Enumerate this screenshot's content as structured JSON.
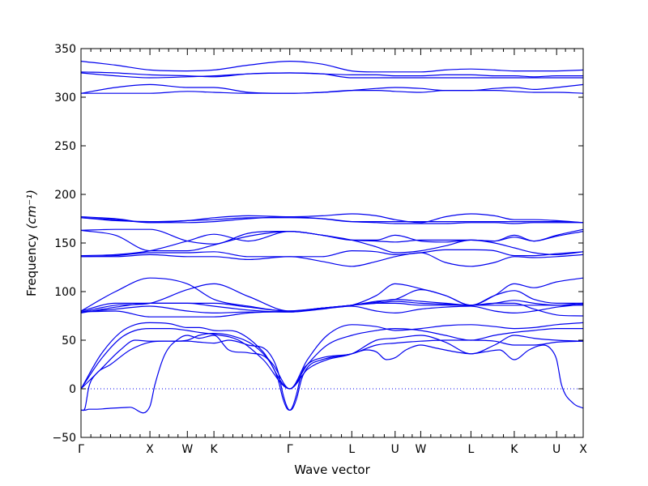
{
  "chart_data": {
    "type": "line",
    "title": "",
    "xlabel": "Wave vector",
    "ylabel": "Frequency",
    "ylabel_unit": "(cm⁻¹)",
    "ylim": [
      -50,
      350
    ],
    "yticks": [
      -50,
      0,
      50,
      100,
      150,
      200,
      250,
      300,
      350
    ],
    "grid": false,
    "legend": "none",
    "line_color": "#0000ee",
    "zero_line_color": "#0000ee",
    "xlim": [
      0,
      5.1
    ],
    "x_path": [
      {
        "label": "Γ",
        "x": 0.0
      },
      {
        "label": "X",
        "x": 0.7
      },
      {
        "label": "W",
        "x": 1.08
      },
      {
        "label": "K",
        "x": 1.35
      },
      {
        "label": "Γ",
        "x": 2.12
      },
      {
        "label": "L",
        "x": 2.75
      },
      {
        "label": "U",
        "x": 3.19
      },
      {
        "label": "W",
        "x": 3.45
      },
      {
        "label": "L",
        "x": 3.96
      },
      {
        "label": "K",
        "x": 4.4
      },
      {
        "label": "U",
        "x": 4.83
      },
      {
        "label": "X",
        "x": 5.1
      }
    ],
    "series": [
      {
        "x": [
          0,
          0.01,
          0.04,
          0.08,
          0.15,
          0.3,
          0.5,
          0.7,
          0.75,
          0.85,
          1.0,
          1.08,
          1.2,
          1.35,
          1.5,
          1.7,
          1.9,
          2.0,
          2.05,
          2.09,
          2.12,
          2.15,
          2.19,
          2.24,
          2.3,
          2.45,
          2.75,
          2.9,
          3.0,
          3.1,
          3.19,
          3.3,
          3.45,
          3.6,
          3.8,
          3.96,
          4.1,
          4.25,
          4.4,
          4.55,
          4.7,
          4.78,
          4.83,
          4.88,
          5.0,
          5.1
        ],
        "y": [
          -22,
          -22,
          -22,
          -21,
          -21,
          -20,
          -19,
          -18,
          4,
          35,
          52,
          55,
          52,
          55,
          40,
          37,
          30,
          10,
          -10,
          -20,
          -22,
          -20,
          -10,
          10,
          22,
          30,
          36,
          40,
          38,
          30,
          32,
          40,
          45,
          42,
          38,
          36,
          38,
          40,
          30,
          40,
          45,
          40,
          30,
          4,
          -15,
          -20
        ]
      },
      {
        "x": [
          0,
          0.04,
          0.08,
          0.15,
          0.3,
          0.5,
          0.7,
          0.9,
          1.08,
          1.2,
          1.35,
          1.5,
          1.7,
          1.9,
          2.0,
          2.05,
          2.09,
          2.12,
          2.15,
          2.19,
          2.24,
          2.3,
          2.45,
          2.75,
          3.0,
          3.19,
          3.45,
          3.7,
          3.96,
          4.2,
          4.4,
          4.6,
          4.83,
          5.1
        ],
        "y": [
          -22,
          -20,
          2,
          15,
          25,
          40,
          48,
          49,
          49,
          48,
          47,
          50,
          45,
          38,
          18,
          -5,
          -18,
          -22,
          -18,
          -5,
          16,
          25,
          32,
          36,
          45,
          47,
          49,
          50,
          50,
          49,
          45,
          45,
          48,
          49
        ]
      },
      {
        "x": [
          0,
          0.2,
          0.4,
          0.55,
          0.7,
          0.9,
          1.08,
          1.2,
          1.35,
          1.55,
          1.75,
          1.95,
          2.12,
          2.3,
          2.5,
          2.75,
          3.0,
          3.19,
          3.45,
          3.7,
          3.96,
          4.2,
          4.4,
          4.6,
          4.83,
          5.1
        ],
        "y": [
          0,
          20,
          40,
          50,
          49,
          49,
          50,
          55,
          57,
          54,
          45,
          25,
          0,
          20,
          30,
          36,
          50,
          52,
          55,
          48,
          36,
          45,
          55,
          52,
          50,
          49
        ]
      },
      {
        "x": [
          0,
          0.2,
          0.4,
          0.55,
          0.7,
          0.9,
          1.08,
          1.2,
          1.35,
          1.6,
          1.85,
          2.12,
          2.3,
          2.5,
          2.75,
          3.0,
          3.19,
          3.45,
          3.7,
          3.96,
          4.2,
          4.4,
          4.6,
          4.83,
          5.1
        ],
        "y": [
          0,
          30,
          52,
          60,
          62,
          62,
          60,
          58,
          56,
          50,
          30,
          0,
          25,
          45,
          55,
          60,
          62,
          60,
          55,
          50,
          55,
          58,
          60,
          62,
          62
        ]
      },
      {
        "x": [
          0,
          0.2,
          0.4,
          0.55,
          0.7,
          0.9,
          1.08,
          1.2,
          1.35,
          1.6,
          1.85,
          2.12,
          2.3,
          2.5,
          2.75,
          3.0,
          3.19,
          3.45,
          3.7,
          3.96,
          4.2,
          4.4,
          4.6,
          4.83,
          5.1
        ],
        "y": [
          0,
          35,
          58,
          66,
          68,
          67,
          63,
          63,
          60,
          58,
          38,
          0,
          30,
          55,
          66,
          64,
          60,
          62,
          65,
          66,
          64,
          62,
          63,
          66,
          68
        ]
      },
      {
        "x": [
          0,
          0.35,
          0.7,
          1.08,
          1.35,
          1.7,
          2.12,
          2.45,
          2.75,
          3.0,
          3.19,
          3.45,
          3.7,
          3.96,
          4.2,
          4.4,
          4.6,
          4.83,
          5.1
        ],
        "y": [
          79,
          80,
          74,
          74,
          74,
          78,
          80,
          83,
          86,
          88,
          90,
          88,
          87,
          86,
          88,
          88,
          82,
          76,
          75
        ]
      },
      {
        "x": [
          0,
          0.35,
          0.7,
          1.08,
          1.35,
          1.7,
          2.12,
          2.45,
          2.75,
          3.0,
          3.19,
          3.45,
          3.7,
          3.96,
          4.2,
          4.4,
          4.6,
          4.83,
          5.1
        ],
        "y": [
          79,
          82,
          85,
          80,
          78,
          79,
          79,
          82,
          85,
          80,
          78,
          82,
          84,
          85,
          80,
          78,
          80,
          84,
          87
        ]
      },
      {
        "x": [
          0,
          0.35,
          0.7,
          1.08,
          1.35,
          1.7,
          2.12,
          2.45,
          2.75,
          3.0,
          3.19,
          3.45,
          3.7,
          3.96,
          4.2,
          4.4,
          4.6,
          4.83,
          5.1
        ],
        "y": [
          78,
          84,
          88,
          88,
          85,
          81,
          79,
          83,
          86,
          89,
          92,
          90,
          88,
          86,
          88,
          91,
          88,
          86,
          88
        ]
      },
      {
        "x": [
          0,
          0.35,
          0.7,
          1.08,
          1.35,
          1.7,
          2.12,
          2.45,
          2.75,
          3.0,
          3.19,
          3.45,
          3.7,
          3.96,
          4.2,
          4.4,
          4.6,
          4.83,
          5.1
        ],
        "y": [
          80,
          88,
          88,
          88,
          88,
          84,
          80,
          83,
          86,
          88,
          88,
          86,
          86,
          86,
          86,
          86,
          86,
          86,
          86
        ]
      },
      {
        "x": [
          0,
          0.35,
          0.7,
          1.08,
          1.35,
          1.7,
          2.12,
          2.45,
          2.75,
          3.0,
          3.19,
          3.45,
          3.7,
          3.96,
          4.2,
          4.4,
          4.6,
          4.83,
          5.1
        ],
        "y": [
          80,
          100,
          114,
          108,
          92,
          85,
          80,
          83,
          86,
          96,
          108,
          103,
          96,
          86,
          96,
          108,
          104,
          110,
          114
        ]
      },
      {
        "x": [
          0,
          0.35,
          0.7,
          1.08,
          1.35,
          1.7,
          2.12,
          2.45,
          2.75,
          3.0,
          3.19,
          3.45,
          3.7,
          3.96,
          4.2,
          4.4,
          4.6,
          4.83,
          5.1
        ],
        "y": [
          79,
          86,
          88,
          102,
          108,
          95,
          80,
          83,
          86,
          90,
          92,
          102,
          96,
          86,
          96,
          101,
          92,
          88,
          88
        ]
      },
      {
        "x": [
          0,
          0.35,
          0.7,
          1.08,
          1.35,
          1.7,
          2.12,
          2.45,
          2.75,
          3.0,
          3.19,
          3.45,
          3.7,
          3.96,
          4.2,
          4.4,
          4.6,
          4.83,
          5.1
        ],
        "y": [
          136,
          137,
          140,
          140,
          141,
          136,
          136,
          136,
          142,
          141,
          138,
          140,
          143,
          143,
          142,
          137,
          137,
          139,
          141
        ]
      },
      {
        "x": [
          0,
          0.35,
          0.7,
          1.08,
          1.35,
          1.7,
          2.12,
          2.45,
          2.75,
          3.0,
          3.19,
          3.45,
          3.7,
          3.96,
          4.2,
          4.4,
          4.6,
          4.83,
          5.1
        ],
        "y": [
          136,
          136,
          138,
          136,
          136,
          133,
          136,
          131,
          126,
          131,
          136,
          140,
          130,
          126,
          130,
          136,
          135,
          136,
          138
        ]
      },
      {
        "x": [
          0,
          0.35,
          0.7,
          1.08,
          1.35,
          1.7,
          2.12,
          2.45,
          2.75,
          3.0,
          3.19,
          3.45,
          3.7,
          3.96,
          4.2,
          4.4,
          4.6,
          4.83,
          5.1
        ],
        "y": [
          163,
          158,
          142,
          142,
          148,
          157,
          162,
          158,
          153,
          146,
          140,
          142,
          147,
          153,
          150,
          145,
          140,
          138,
          141
        ]
      },
      {
        "x": [
          0,
          0.35,
          0.7,
          1.08,
          1.35,
          1.7,
          2.12,
          2.45,
          2.75,
          3.0,
          3.19,
          3.45,
          3.7,
          3.96,
          4.2,
          4.4,
          4.6,
          4.83,
          5.1
        ],
        "y": [
          163,
          164,
          164,
          152,
          149,
          160,
          162,
          158,
          153,
          153,
          158,
          152,
          151,
          153,
          152,
          156,
          152,
          158,
          164
        ]
      },
      {
        "x": [
          0,
          0.35,
          0.7,
          1.08,
          1.35,
          1.7,
          2.12,
          2.45,
          2.75,
          3.0,
          3.19,
          3.45,
          3.7,
          3.96,
          4.2,
          4.4,
          4.6,
          4.83,
          5.1
        ],
        "y": [
          137,
          138,
          142,
          152,
          159,
          152,
          162,
          158,
          153,
          152,
          151,
          153,
          153,
          153,
          152,
          158,
          152,
          157,
          162
        ]
      },
      {
        "x": [
          0,
          0.35,
          0.7,
          1.08,
          1.35,
          1.7,
          2.12,
          2.45,
          2.75,
          3.0,
          3.19,
          3.45,
          3.7,
          3.96,
          4.2,
          4.4,
          4.6,
          4.83,
          5.1
        ],
        "y": [
          177,
          175,
          171,
          171,
          172,
          175,
          177,
          175,
          172,
          172,
          172,
          172,
          172,
          172,
          172,
          172,
          172,
          172,
          171
        ]
      },
      {
        "x": [
          0,
          0.35,
          0.7,
          1.08,
          1.35,
          1.7,
          2.12,
          2.45,
          2.75,
          3.0,
          3.19,
          3.45,
          3.7,
          3.96,
          4.2,
          4.4,
          4.6,
          4.83,
          5.1
        ],
        "y": [
          176,
          174,
          171,
          173,
          176,
          178,
          177,
          178,
          180,
          178,
          174,
          171,
          177,
          180,
          178,
          174,
          174,
          173,
          171
        ]
      },
      {
        "x": [
          0,
          0.35,
          0.7,
          1.08,
          1.35,
          1.7,
          2.12,
          2.45,
          2.75,
          3.0,
          3.19,
          3.45,
          3.7,
          3.96,
          4.2,
          4.4,
          4.6,
          4.83,
          5.1
        ],
        "y": [
          176,
          173,
          172,
          173,
          174,
          176,
          176,
          175,
          172,
          171,
          170,
          170,
          170,
          171,
          171,
          170,
          171,
          171,
          171
        ]
      },
      {
        "x": [
          0,
          0.35,
          0.7,
          1.08,
          1.35,
          1.7,
          2.12,
          2.45,
          2.75,
          3.0,
          3.19,
          3.45,
          3.7,
          3.96,
          4.2,
          4.4,
          4.6,
          4.83,
          5.1
        ],
        "y": [
          304,
          304,
          304,
          306,
          305,
          304,
          304,
          305,
          307,
          307,
          306,
          305,
          307,
          307,
          307,
          306,
          305,
          305,
          304
        ]
      },
      {
        "x": [
          0,
          0.35,
          0.7,
          1.08,
          1.35,
          1.7,
          2.12,
          2.45,
          2.75,
          3.0,
          3.19,
          3.45,
          3.7,
          3.96,
          4.2,
          4.4,
          4.6,
          4.83,
          5.1
        ],
        "y": [
          304,
          310,
          313,
          310,
          310,
          305,
          304,
          305,
          307,
          309,
          310,
          309,
          307,
          307,
          309,
          310,
          308,
          310,
          313
        ]
      },
      {
        "x": [
          0,
          0.35,
          0.7,
          1.08,
          1.35,
          1.7,
          2.12,
          2.45,
          2.75,
          3.0,
          3.19,
          3.45,
          3.7,
          3.96,
          4.2,
          4.4,
          4.6,
          4.83,
          5.1
        ],
        "y": [
          326,
          325,
          323,
          322,
          321,
          324,
          325,
          324,
          320,
          320,
          320,
          320,
          320,
          320,
          320,
          320,
          320,
          320,
          320
        ]
      },
      {
        "x": [
          0,
          0.35,
          0.7,
          1.08,
          1.35,
          1.7,
          2.12,
          2.45,
          2.75,
          3.0,
          3.19,
          3.45,
          3.7,
          3.96,
          4.2,
          4.4,
          4.6,
          4.83,
          5.1
        ],
        "y": [
          325,
          322,
          320,
          321,
          322,
          324,
          325,
          324,
          323,
          323,
          322,
          322,
          323,
          323,
          322,
          322,
          321,
          322,
          322
        ]
      },
      {
        "x": [
          0,
          0.35,
          0.7,
          1.08,
          1.35,
          1.7,
          2.12,
          2.45,
          2.75,
          3.0,
          3.19,
          3.45,
          3.7,
          3.96,
          4.2,
          4.4,
          4.6,
          4.83,
          5.1
        ],
        "y": [
          337,
          333,
          328,
          327,
          328,
          333,
          337,
          334,
          327,
          326,
          326,
          326,
          328,
          329,
          328,
          327,
          327,
          327,
          328
        ]
      }
    ]
  }
}
